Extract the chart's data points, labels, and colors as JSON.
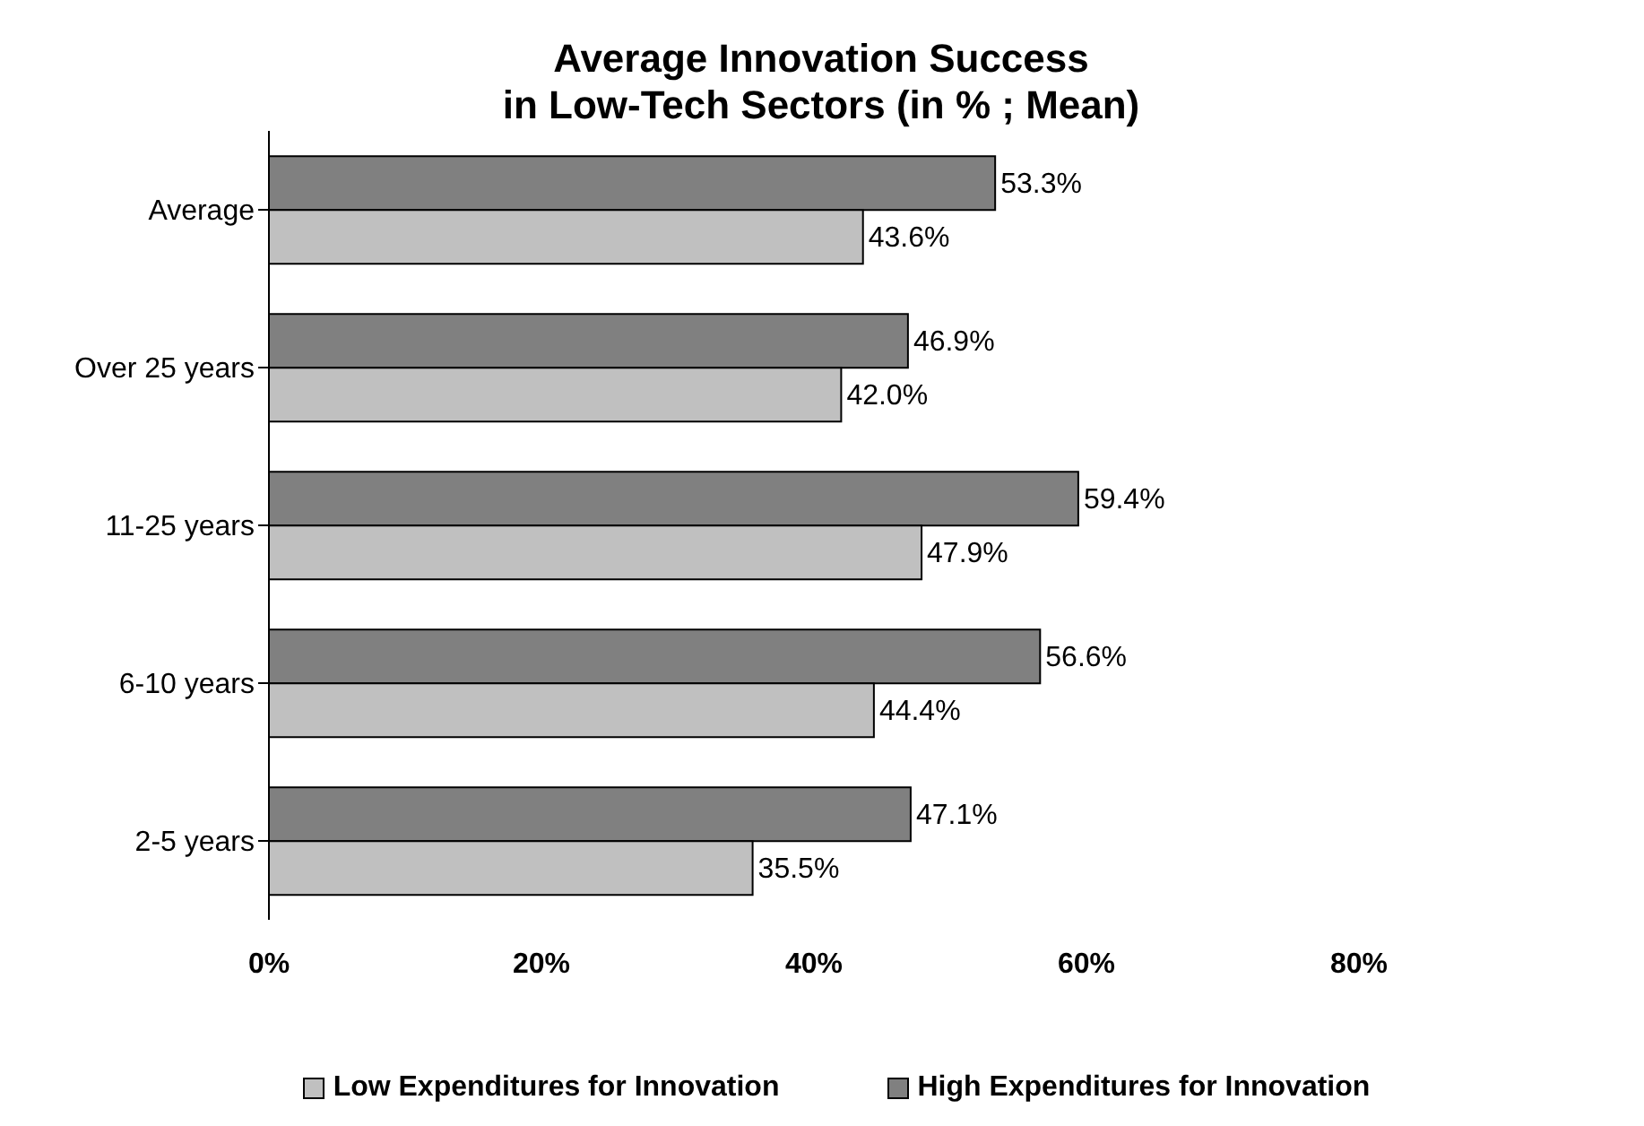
{
  "chart_data": {
    "type": "bar",
    "orientation": "horizontal",
    "title": "Average Innovation Success\nin Low-Tech Sectors (in % ; Mean)",
    "categories": [
      "Average",
      "Over 25 years",
      "11-25 years",
      "6-10 years",
      "2-5 years"
    ],
    "series": [
      {
        "name": "High Expenditures for Innovation",
        "color": "#808080",
        "values": [
          53.3,
          46.9,
          59.4,
          56.6,
          47.1
        ],
        "value_labels": [
          "53.3%",
          "46.9%",
          "59.4%",
          "56.6%",
          "47.1%"
        ]
      },
      {
        "name": "Low Expenditures for Innovation",
        "color": "#c0c0c0",
        "values": [
          43.6,
          42.0,
          47.9,
          44.4,
          35.5
        ],
        "value_labels": [
          "43.6%",
          "42.0%",
          "47.9%",
          "44.4%",
          "35.5%"
        ]
      }
    ],
    "xlim": [
      0,
      80
    ],
    "xticks": [
      {
        "value": 0,
        "label": "0%"
      },
      {
        "value": 20,
        "label": "20%"
      },
      {
        "value": 40,
        "label": "40%"
      },
      {
        "value": 60,
        "label": "60%"
      },
      {
        "value": 80,
        "label": "80%"
      }
    ],
    "grid": false,
    "legend": "bottom"
  }
}
